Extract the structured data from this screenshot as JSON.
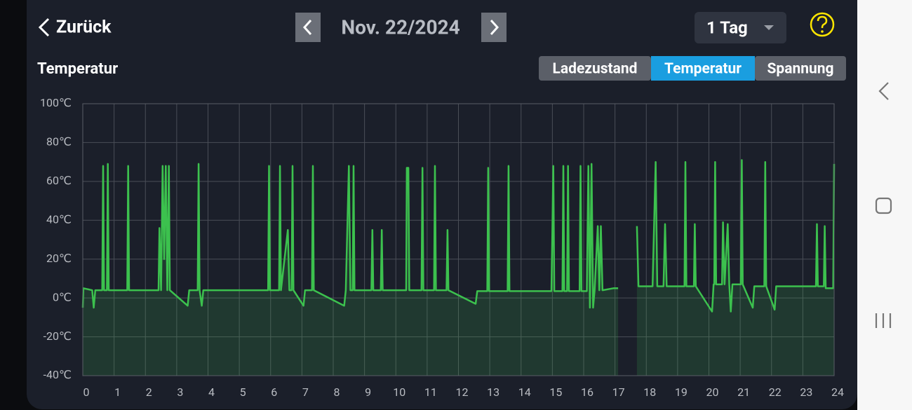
{
  "header": {
    "back": "Zurück",
    "date": "Nov. 22/2024",
    "range": "1 Tag"
  },
  "tabs": {
    "items": [
      "Ladezustand",
      "Temperatur",
      "Spannung"
    ],
    "active": 1
  },
  "chart_data": {
    "type": "line",
    "title": "Temperatur",
    "color": "#3cc14e",
    "grid": true,
    "xlim": [
      0,
      24
    ],
    "ylim": [
      -40,
      100
    ],
    "xticks": [
      0,
      1,
      2,
      3,
      4,
      5,
      6,
      7,
      8,
      9,
      10,
      11,
      12,
      13,
      14,
      15,
      16,
      17,
      18,
      19,
      20,
      21,
      22,
      23,
      24
    ],
    "yticks": [
      {
        "value": -40,
        "label": "-40℃"
      },
      {
        "value": -20,
        "label": "-20℃"
      },
      {
        "value": 0,
        "label": "0℃"
      },
      {
        "value": 20,
        "label": "20℃"
      },
      {
        "value": 40,
        "label": "40℃"
      },
      {
        "value": 60,
        "label": "60℃"
      },
      {
        "value": 80,
        "label": "80℃"
      },
      {
        "value": 100,
        "label": "100℃"
      }
    ],
    "x": [
      0,
      0.02,
      0.3,
      0.35,
      0.4,
      0.62,
      0.65,
      0.68,
      0.77,
      0.8,
      0.83,
      1.42,
      1.45,
      1.48,
      2.42,
      2.45,
      2.5,
      2.55,
      2.6,
      2.65,
      2.7,
      2.75,
      2.78,
      3.35,
      3.4,
      3.67,
      3.7,
      3.73,
      3.8,
      3.85,
      5.92,
      5.95,
      5.98,
      6.27,
      6.3,
      6.33,
      6.55,
      6.6,
      6.67,
      6.7,
      6.73,
      7.05,
      7.1,
      7.32,
      7.35,
      7.38,
      8.35,
      8.4,
      8.5,
      8.55,
      8.62,
      8.65,
      8.68,
      9.22,
      9.25,
      9.28,
      9.52,
      9.55,
      9.58,
      10.33,
      10.35,
      10.4,
      10.43,
      10.82,
      10.85,
      10.88,
      11.22,
      11.25,
      11.28,
      11.62,
      11.65,
      11.68,
      12.55,
      12.6,
      12.92,
      12.95,
      12.98,
      13.57,
      13.6,
      13.63,
      14.97,
      15.0,
      15.03,
      15.06,
      15.32,
      15.35,
      15.38,
      15.47,
      15.5,
      15.53,
      15.87,
      15.9,
      15.93,
      16.1,
      16.15,
      16.2,
      16.25,
      16.3,
      16.35,
      16.45,
      16.5,
      16.55,
      16.6,
      16.95,
      17.1,
      17.4,
      17.7,
      17.75,
      18.2,
      18.3,
      18.35,
      18.55,
      18.6,
      18.65,
      19.22,
      19.25,
      19.28,
      19.52,
      19.55,
      19.58,
      20.1,
      20.15,
      20.17,
      20.2,
      20.23,
      20.42,
      20.45,
      20.5,
      20.6,
      20.65,
      20.7,
      20.75,
      21.02,
      21.05,
      21.08,
      21.4,
      21.45,
      21.77,
      21.8,
      21.83,
      22.1,
      22.15,
      23.42,
      23.45,
      23.48,
      23.67,
      23.7,
      23.73,
      23.97,
      24
    ],
    "values": [
      -5,
      5,
      4,
      -5,
      4,
      4,
      68,
      4,
      4,
      69,
      4,
      4,
      68,
      4,
      4,
      36,
      4,
      68,
      20,
      68,
      4,
      68,
      4,
      -4,
      4,
      4,
      69,
      4,
      -4,
      4,
      4,
      68,
      4,
      4,
      68,
      4,
      35,
      4,
      4,
      68,
      4,
      -4,
      4,
      4,
      68,
      4,
      -4,
      4,
      68,
      4,
      4,
      68,
      4,
      4,
      35,
      4,
      4,
      35,
      4,
      4,
      67,
      67,
      4,
      4,
      67,
      4,
      4,
      68,
      4,
      4,
      35,
      4,
      -3,
      3.5,
      3.5,
      67,
      3.5,
      3.5,
      68,
      3.5,
      3.5,
      35,
      68,
      3.5,
      3.5,
      68,
      3.5,
      3.5,
      68,
      3.5,
      3.5,
      68,
      3.5,
      3.5,
      68,
      -5,
      69,
      -5,
      4,
      37,
      4,
      37,
      4,
      5,
      5,
      null,
      37,
      6,
      6,
      70,
      6,
      6,
      38,
      6,
      6,
      70,
      6,
      6,
      38,
      6,
      -7,
      7,
      7,
      70,
      7,
      7,
      39,
      7,
      38,
      7,
      -7,
      7,
      7,
      71,
      7,
      -5,
      6,
      6,
      70,
      6,
      -6,
      6,
      6,
      38,
      6,
      6,
      37,
      5,
      5,
      69
    ]
  }
}
